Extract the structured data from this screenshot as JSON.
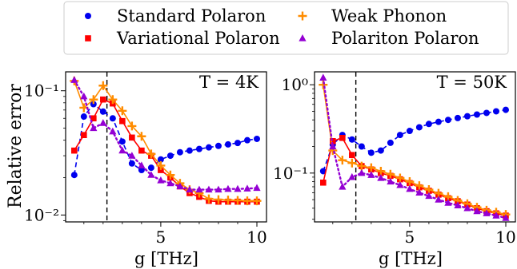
{
  "legend": {
    "entries": [
      {
        "label": "Standard Polaron",
        "marker": "circle",
        "color": "#0000ee"
      },
      {
        "label": "Variational Polaron",
        "marker": "square",
        "color": "#ff0000"
      },
      {
        "label": "Weak Phonon",
        "marker": "plus",
        "color": "#ff8c00"
      },
      {
        "label": "Polariton Polaron",
        "marker": "triangle",
        "color": "#9400d3"
      }
    ],
    "placement": "top-center",
    "columns": 2
  },
  "chart_data": [
    {
      "type": "line",
      "annotation": "T = 4K",
      "xlabel": "g [THz]",
      "ylabel": "Relative error",
      "xlim": [
        0.05,
        10.5
      ],
      "ylim": [
        0.0088,
        0.142
      ],
      "yscale": "log",
      "xticks": [
        5,
        10
      ],
      "xtick_labels": [
        "5",
        "10"
      ],
      "yticks": [
        0.01,
        0.1
      ],
      "ytick_labels": [
        "10⁻²",
        "10⁻¹"
      ],
      "vline_x": 2.2,
      "grid": false,
      "series": [
        {
          "name": "Standard Polaron",
          "style": "dashed",
          "x": [
            0.5,
            1.0,
            1.5,
            2.0,
            2.5,
            3.0,
            3.5,
            4.0,
            4.5,
            5.0,
            5.5,
            6.0,
            6.5,
            7.0,
            7.5,
            8.0,
            8.5,
            9.0,
            9.5,
            10.0
          ],
          "values": [
            0.021,
            0.062,
            0.078,
            0.068,
            0.06,
            0.039,
            0.026,
            0.023,
            0.024,
            0.028,
            0.03,
            0.032,
            0.033,
            0.034,
            0.035,
            0.036,
            0.037,
            0.038,
            0.04,
            0.041
          ]
        },
        {
          "name": "Variational Polaron",
          "style": "solid",
          "x": [
            0.5,
            1.0,
            1.5,
            2.0,
            2.5,
            3.0,
            3.5,
            4.0,
            4.5,
            5.0,
            5.5,
            6.0,
            6.5,
            7.0,
            7.5,
            8.0,
            8.5,
            9.0,
            9.5,
            10.0
          ],
          "values": [
            0.033,
            0.044,
            0.06,
            0.085,
            0.079,
            0.057,
            0.042,
            0.033,
            0.03,
            0.023,
            0.02,
            0.017,
            0.015,
            0.014,
            0.013,
            0.0128,
            0.0128,
            0.0128,
            0.0128,
            0.0128
          ]
        },
        {
          "name": "Weak Phonon",
          "style": "solid",
          "x": [
            0.5,
            1.0,
            1.5,
            2.0,
            2.5,
            3.0,
            3.5,
            4.0,
            4.5,
            5.0,
            5.5,
            6.0,
            6.5,
            7.0,
            7.5,
            8.0,
            8.5,
            9.0,
            9.5,
            10.0
          ],
          "values": [
            0.12,
            0.073,
            0.085,
            0.11,
            0.085,
            0.069,
            0.052,
            0.043,
            0.031,
            0.025,
            0.021,
            0.018,
            0.016,
            0.015,
            0.0135,
            0.0133,
            0.0132,
            0.0131,
            0.013,
            0.013
          ]
        },
        {
          "name": "Polariton Polaron",
          "style": "dotted",
          "x": [
            0.5,
            1.0,
            1.5,
            2.0,
            2.5,
            3.0,
            3.5,
            4.0,
            4.5,
            5.0,
            5.5,
            6.0,
            6.5,
            7.0,
            7.5,
            8.0,
            8.5,
            9.0,
            9.5,
            10.0
          ],
          "values": [
            0.122,
            0.09,
            0.05,
            0.055,
            0.047,
            0.033,
            0.03,
            0.025,
            0.021,
            0.019,
            0.018,
            0.017,
            0.016,
            0.016,
            0.016,
            0.016,
            0.0162,
            0.0162,
            0.0163,
            0.0165
          ]
        }
      ]
    },
    {
      "type": "line",
      "annotation": "T = 50K",
      "xlabel": "g [THz]",
      "ylabel": "",
      "xlim": [
        0.05,
        10.5
      ],
      "ylim": [
        0.028,
        1.4
      ],
      "yscale": "log",
      "xticks": [
        5,
        10
      ],
      "xtick_labels": [
        "5",
        "10"
      ],
      "yticks": [
        0.1,
        1
      ],
      "ytick_labels": [
        "10⁻¹",
        "10⁰"
      ],
      "vline_x": 2.2,
      "grid": false,
      "series": [
        {
          "name": "Standard Polaron",
          "style": "dashed",
          "x": [
            0.5,
            1.0,
            1.5,
            2.0,
            2.5,
            3.0,
            3.5,
            4.0,
            4.5,
            5.0,
            5.5,
            6.0,
            6.5,
            7.0,
            7.5,
            8.0,
            8.5,
            9.0,
            9.5,
            10.0
          ],
          "values": [
            0.105,
            0.21,
            0.27,
            0.24,
            0.2,
            0.17,
            0.18,
            0.22,
            0.27,
            0.3,
            0.33,
            0.36,
            0.38,
            0.4,
            0.42,
            0.44,
            0.46,
            0.48,
            0.5,
            0.52
          ]
        },
        {
          "name": "Variational Polaron",
          "style": "solid",
          "x": [
            0.5,
            1.0,
            1.5,
            2.0,
            2.5,
            3.0,
            3.5,
            4.0,
            4.5,
            5.0,
            5.5,
            6.0,
            6.5,
            7.0,
            7.5,
            8.0,
            8.5,
            9.0,
            9.5,
            10.0
          ],
          "values": [
            0.078,
            0.23,
            0.25,
            0.16,
            0.12,
            0.11,
            0.1,
            0.093,
            0.085,
            0.077,
            0.069,
            0.063,
            0.057,
            0.052,
            0.048,
            0.044,
            0.04,
            0.037,
            0.035,
            0.033
          ]
        },
        {
          "name": "Weak Phonon",
          "style": "solid",
          "x": [
            0.5,
            1.0,
            1.5,
            2.0,
            2.5,
            3.0,
            3.5,
            4.0,
            4.5,
            5.0,
            5.5,
            6.0,
            6.5,
            7.0,
            7.5,
            8.0,
            8.5,
            9.0,
            9.5,
            10.0
          ],
          "values": [
            1.0,
            0.18,
            0.14,
            0.13,
            0.12,
            0.115,
            0.105,
            0.097,
            0.088,
            0.08,
            0.072,
            0.065,
            0.059,
            0.054,
            0.049,
            0.045,
            0.041,
            0.038,
            0.036,
            0.034
          ]
        },
        {
          "name": "Polariton Polaron",
          "style": "dotted",
          "x": [
            0.5,
            1.0,
            1.5,
            2.0,
            2.5,
            3.0,
            3.5,
            4.0,
            4.5,
            5.0,
            5.5,
            6.0,
            6.5,
            7.0,
            7.5,
            8.0,
            8.5,
            9.0,
            9.5,
            10.0
          ],
          "values": [
            1.2,
            0.2,
            0.07,
            0.09,
            0.1,
            0.095,
            0.088,
            0.08,
            0.073,
            0.066,
            0.06,
            0.055,
            0.05,
            0.046,
            0.043,
            0.04,
            0.037,
            0.035,
            0.033,
            0.031
          ]
        }
      ]
    }
  ]
}
